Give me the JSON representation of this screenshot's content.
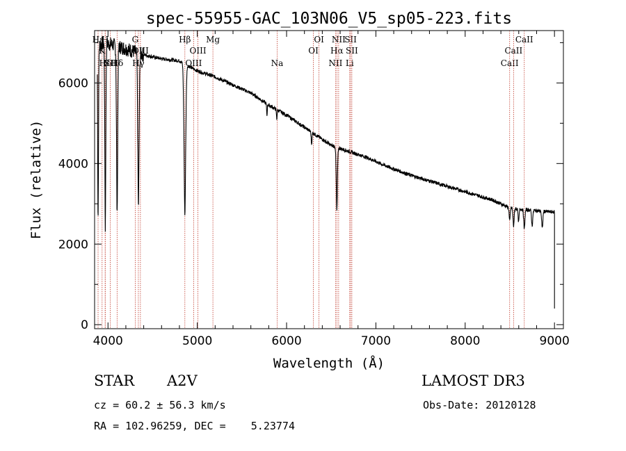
{
  "chart_data": {
    "type": "line",
    "title": "spec-55955-GAC_103N06_V5_sp05-223.fits",
    "xlabel": "Wavelength (Å)",
    "ylabel": "Flux (relative)",
    "xlim": [
      3850,
      9100
    ],
    "ylim": [
      -100,
      7300
    ],
    "xticks": [
      4000,
      5000,
      6000,
      7000,
      8000,
      9000
    ],
    "yticks": [
      0,
      2000,
      4000,
      6000
    ],
    "x_minor_step": 200,
    "y_minor_step": 1000,
    "series": [
      {
        "name": "spectrum",
        "continuum": [
          [
            3880,
            6900
          ],
          [
            3950,
            7000
          ],
          [
            4050,
            6950
          ],
          [
            4200,
            6850
          ],
          [
            4400,
            6700
          ],
          [
            4600,
            6600
          ],
          [
            4800,
            6550
          ],
          [
            5000,
            6300
          ],
          [
            5200,
            6150
          ],
          [
            5400,
            5950
          ],
          [
            5600,
            5750
          ],
          [
            5800,
            5450
          ],
          [
            6000,
            5200
          ],
          [
            6200,
            4900
          ],
          [
            6400,
            4600
          ],
          [
            6500,
            4450
          ],
          [
            6700,
            4300
          ],
          [
            6900,
            4150
          ],
          [
            7100,
            3950
          ],
          [
            7400,
            3700
          ],
          [
            7700,
            3500
          ],
          [
            8000,
            3300
          ],
          [
            8300,
            3100
          ],
          [
            8500,
            2900
          ],
          [
            8700,
            2850
          ],
          [
            8950,
            2800
          ]
        ],
        "absorption_lines": [
          {
            "center": 3889,
            "depth": 4400,
            "width": 5
          },
          {
            "center": 3970,
            "depth": 4700,
            "width": 6
          },
          {
            "center": 4102,
            "depth": 4300,
            "width": 7
          },
          {
            "center": 4341,
            "depth": 3900,
            "width": 8
          },
          {
            "center": 4861,
            "depth": 3800,
            "width": 10
          },
          {
            "center": 5780,
            "depth": 300,
            "width": 4
          },
          {
            "center": 5890,
            "depth": 250,
            "width": 4
          },
          {
            "center": 6280,
            "depth": 300,
            "width": 5
          },
          {
            "center": 6563,
            "depth": 1600,
            "width": 7
          },
          {
            "center": 8498,
            "depth": 350,
            "width": 6
          },
          {
            "center": 8542,
            "depth": 450,
            "width": 7
          },
          {
            "center": 8598,
            "depth": 350,
            "width": 6
          },
          {
            "center": 8662,
            "depth": 500,
            "width": 7
          },
          {
            "center": 8750,
            "depth": 400,
            "width": 7
          },
          {
            "center": 8863,
            "depth": 450,
            "width": 7
          }
        ],
        "end_drop": {
          "x": 9000,
          "y": 400
        }
      }
    ],
    "line_markers": [
      {
        "x": 3889,
        "label": "Hε",
        "row": 1
      },
      {
        "x": 3934,
        "label": "K",
        "row": 2
      },
      {
        "x": 3968,
        "label": "H",
        "row": 1
      },
      {
        "x": 3970,
        "label": "Hδ",
        "row": 3
      },
      {
        "x": 4026,
        "label": "SII",
        "row": 3
      },
      {
        "x": 4102,
        "label": "Hδ",
        "row": 3
      },
      {
        "x": 4305,
        "label": "G",
        "row": 1
      },
      {
        "x": 4340,
        "label": "Hγ",
        "row": 3
      },
      {
        "x": 4363,
        "label": "OIII",
        "row": 2
      },
      {
        "x": 4861,
        "label": "Hβ",
        "row": 1
      },
      {
        "x": 4959,
        "label": "OIII",
        "row": 3
      },
      {
        "x": 5007,
        "label": "OIII",
        "row": 2
      },
      {
        "x": 5175,
        "label": "Mg",
        "row": 1
      },
      {
        "x": 5894,
        "label": "Na",
        "row": 3
      },
      {
        "x": 6300,
        "label": "OI",
        "row": 2
      },
      {
        "x": 6363,
        "label": "OI",
        "row": 1
      },
      {
        "x": 6548,
        "label": "NII",
        "row": 3
      },
      {
        "x": 6563,
        "label": "Hα",
        "row": 2
      },
      {
        "x": 6583,
        "label": "NII",
        "row": 1
      },
      {
        "x": 6707,
        "label": "Li",
        "row": 3
      },
      {
        "x": 6717,
        "label": "SII",
        "row": 1
      },
      {
        "x": 6731,
        "label": "SII",
        "row": 2
      },
      {
        "x": 8498,
        "label": "CaII",
        "row": 3
      },
      {
        "x": 8542,
        "label": "CaII",
        "row": 2
      },
      {
        "x": 8662,
        "label": "CaII",
        "row": 1
      }
    ],
    "marker_color": "#c0392b",
    "line_color": "#000000"
  },
  "info": {
    "object_class": "STAR",
    "subclass": "A2V",
    "survey": "LAMOST DR3",
    "redshift": "cz = 60.2 ± 56.3 km/s",
    "obs_date": "Obs-Date: 20120128",
    "coords": "RA = 102.96259, DEC =    5.23774"
  }
}
